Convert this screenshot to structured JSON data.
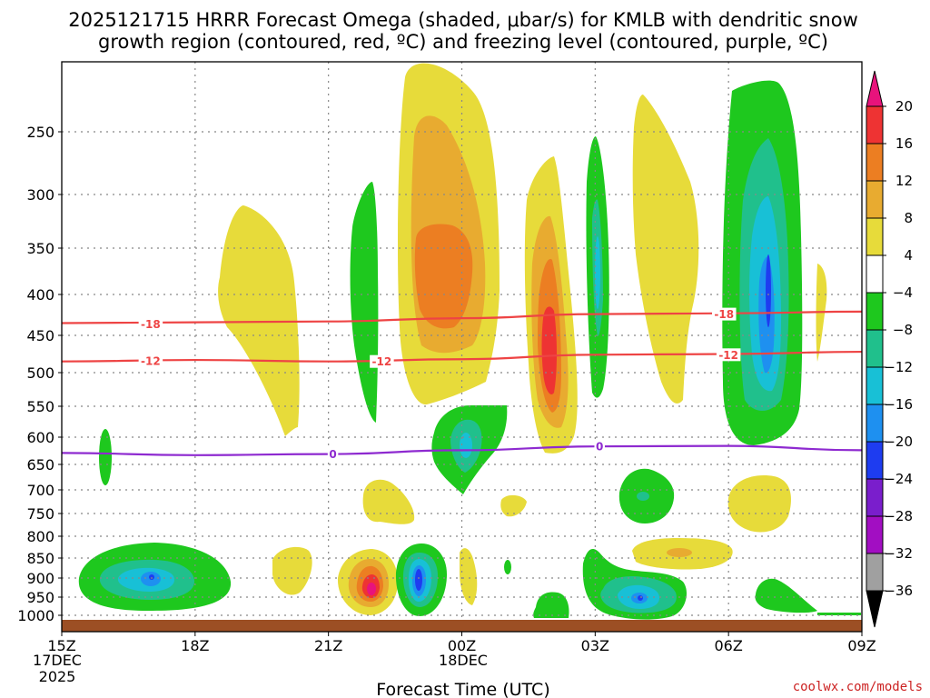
{
  "title": {
    "line1": "2025121715 HRRR Forecast Omega (shaded, μbar/s) for KMLB with dendritic snow",
    "line2": "growth region (contoured, red, ºC) and freezing level (contoured, purple, ºC)"
  },
  "x_axis": {
    "label": "Forecast Time (UTC)",
    "ticks": [
      {
        "label": "15Z",
        "hour": 0
      },
      {
        "label": "18Z",
        "hour": 3
      },
      {
        "label": "21Z",
        "hour": 6
      },
      {
        "label": "00Z",
        "hour": 9
      },
      {
        "label": "03Z",
        "hour": 12
      },
      {
        "label": "06Z",
        "hour": 15
      },
      {
        "label": "09Z",
        "hour": 18
      }
    ],
    "date_labels": [
      {
        "line1": "17DEC",
        "line2": "2025"
      },
      {
        "line1": "18DEC"
      }
    ]
  },
  "y_axis": {
    "ticks": [
      "250",
      "300",
      "350",
      "400",
      "450",
      "500",
      "550",
      "600",
      "650",
      "700",
      "750",
      "800",
      "850",
      "900",
      "950",
      "1000"
    ]
  },
  "colorbar": {
    "labels": [
      "20",
      "16",
      "12",
      "8",
      "4",
      "−4",
      "−8",
      "−12",
      "−16",
      "−20",
      "−24",
      "−28",
      "−32",
      "−36"
    ],
    "colors": {
      "gt20": "#e8137c",
      "16_20": "#ee3333",
      "12_16": "#ec7e22",
      "8_12": "#e8ab30",
      "4_8": "#e7db3a",
      "m4_4": "#ffffff",
      "m8_m4": "#1ec81e",
      "m12_m8": "#20c08c",
      "m16_m12": "#18c0d6",
      "m20_m16": "#1e90f0",
      "m24_m20": "#1e3cf0",
      "m28_m24": "#7a1ecc",
      "m32_m28": "#a20ec2",
      "m36_m32": "#a0a0a0",
      "lt36": "#000000"
    }
  },
  "credit": "coolwx.com/models",
  "chart_data": {
    "type": "contour",
    "x_units": "forecast hour from 15Z 17 Dec 2025",
    "y_units": "pressure (mb)",
    "xlim": [
      0,
      18
    ],
    "ylim": [
      1000,
      200
    ],
    "contour_lines": [
      {
        "name": "−18 ºC isotherm",
        "label": "-18",
        "color": "#ee4444",
        "points": [
          [
            0,
            435
          ],
          [
            3,
            434
          ],
          [
            6,
            433
          ],
          [
            9,
            429
          ],
          [
            12,
            424
          ],
          [
            15,
            423
          ],
          [
            18,
            421
          ]
        ],
        "label_positions": [
          [
            2,
            436
          ],
          [
            14.9,
            424
          ]
        ]
      },
      {
        "name": "−12 ºC isotherm",
        "label": "-12",
        "color": "#ee4444",
        "points": [
          [
            0,
            485
          ],
          [
            3,
            483
          ],
          [
            6,
            485
          ],
          [
            9,
            482
          ],
          [
            12,
            476
          ],
          [
            15,
            475
          ],
          [
            18,
            472
          ]
        ],
        "label_positions": [
          [
            2,
            484
          ],
          [
            7.2,
            485
          ],
          [
            15,
            476
          ]
        ]
      },
      {
        "name": "0 ºC freezing level",
        "label": "0",
        "color": "#8e2ad0",
        "points": [
          [
            0,
            629
          ],
          [
            3,
            633
          ],
          [
            6,
            631
          ],
          [
            9,
            624
          ],
          [
            12,
            617
          ],
          [
            15,
            616
          ],
          [
            18,
            624
          ]
        ],
        "label_positions": [
          [
            6.1,
            631
          ],
          [
            12.1,
            617
          ]
        ]
      }
    ],
    "omega_features": [
      {
        "sign": "ascent",
        "x_hour": 1.0,
        "p_top": 590,
        "p_bottom": 680,
        "peak": -6,
        "fill": [
          "m8_m4"
        ]
      },
      {
        "sign": "ascent",
        "x_hour": 2.2,
        "p_top": 820,
        "p_bottom": 960,
        "peak": -18,
        "fill": [
          "m8_m4",
          "m12_m8",
          "m16_m12",
          "m20_m16"
        ]
      },
      {
        "sign": "descent",
        "x_hour": 4.0,
        "p_top": 310,
        "p_bottom": 590,
        "peak": 7,
        "fill": [
          "4_8"
        ]
      },
      {
        "sign": "descent",
        "x_hour": 5.5,
        "p_top": 820,
        "p_bottom": 940,
        "peak": 6,
        "fill": [
          "4_8"
        ]
      },
      {
        "sign": "ascent",
        "x_hour": 6.8,
        "p_top": 290,
        "p_bottom": 600,
        "peak": -7,
        "fill": [
          "m8_m4"
        ]
      },
      {
        "sign": "descent",
        "x_hour": 6.9,
        "p_top": 660,
        "p_bottom": 760,
        "peak": 5,
        "fill": [
          "4_8"
        ]
      },
      {
        "sign": "descent",
        "x_hour": 7.0,
        "p_top": 860,
        "p_bottom": 990,
        "peak": 22,
        "fill": [
          "4_8",
          "8_12",
          "12_16",
          "16_20",
          "gt20"
        ]
      },
      {
        "sign": "descent",
        "x_hour": 8.6,
        "p_top": 200,
        "p_bottom": 550,
        "peak": 14,
        "fill": [
          "4_8",
          "8_12",
          "12_16"
        ]
      },
      {
        "sign": "ascent",
        "x_hour": 8.0,
        "p_top": 860,
        "p_bottom": 990,
        "peak": -22,
        "fill": [
          "m8_m4",
          "m12_m8",
          "m16_m12",
          "m20_m16",
          "m24_m20"
        ]
      },
      {
        "sign": "ascent",
        "x_hour": 9.0,
        "p_top": 550,
        "p_bottom": 690,
        "peak": -14,
        "fill": [
          "m8_m4",
          "m12_m8",
          "m16_m12"
        ]
      },
      {
        "sign": "descent",
        "x_hour": 10.9,
        "p_top": 270,
        "p_bottom": 640,
        "peak": 18,
        "fill": [
          "4_8",
          "8_12",
          "12_16",
          "16_20"
        ]
      },
      {
        "sign": "ascent",
        "x_hour": 12.0,
        "p_top": 260,
        "p_bottom": 530,
        "peak": -14,
        "fill": [
          "m8_m4",
          "m12_m8",
          "m16_m12"
        ]
      },
      {
        "sign": "descent",
        "x_hour": 13.6,
        "p_top": 210,
        "p_bottom": 560,
        "peak": 6,
        "fill": [
          "4_8"
        ]
      },
      {
        "sign": "ascent",
        "x_hour": 13.2,
        "p_top": 690,
        "p_bottom": 770,
        "peak": -10,
        "fill": [
          "m8_m4",
          "m12_m8"
        ]
      },
      {
        "sign": "ascent",
        "x_hour": 13.0,
        "p_top": 870,
        "p_bottom": 990,
        "peak": -18,
        "fill": [
          "m8_m4",
          "m12_m8",
          "m16_m12",
          "m20_m16"
        ]
      },
      {
        "sign": "ascent",
        "x_hour": 16.0,
        "p_top": 210,
        "p_bottom": 600,
        "peak": -18,
        "fill": [
          "m8_m4",
          "m12_m8",
          "m16_m12",
          "m20_m16"
        ]
      },
      {
        "sign": "descent",
        "x_hour": 16.0,
        "p_top": 700,
        "p_bottom": 800,
        "peak": 6,
        "fill": [
          "4_8"
        ]
      },
      {
        "sign": "descent",
        "x_hour": 17.5,
        "p_top": 370,
        "p_bottom": 500,
        "peak": 5,
        "fill": [
          "4_8"
        ]
      },
      {
        "sign": "descent",
        "x_hour": 14.2,
        "p_top": 820,
        "p_bottom": 880,
        "peak": 9,
        "fill": [
          "4_8",
          "8_12"
        ]
      }
    ]
  }
}
